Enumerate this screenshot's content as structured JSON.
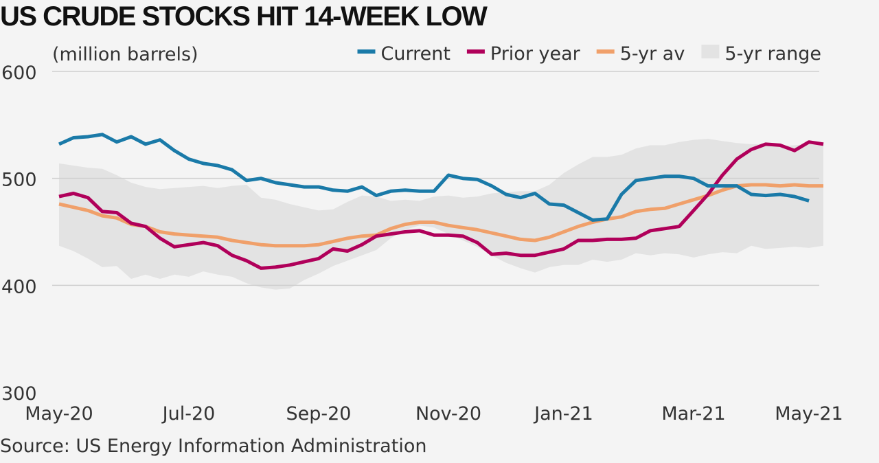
{
  "chart_data": {
    "type": "line",
    "title": "US CRUDE STOCKS HIT 14-WEEK LOW",
    "unit_label": "(million barrels)",
    "source": "Source: US Energy Information Administration",
    "ylim": [
      300,
      600
    ],
    "yticks": [
      300,
      400,
      500,
      600
    ],
    "grid": true,
    "legend_position": "top-right",
    "x_ticks": [
      {
        "week": 0,
        "label": "May-20"
      },
      {
        "week": 9,
        "label": "Jul-20"
      },
      {
        "week": 18,
        "label": "Sep-20"
      },
      {
        "week": 27,
        "label": "Nov-20"
      },
      {
        "week": 35,
        "label": "Jan-21"
      },
      {
        "week": 44,
        "label": "Mar-21"
      },
      {
        "week": 52,
        "label": "May-21"
      }
    ],
    "legend": [
      {
        "label": "Current",
        "color": "#1a7aa8",
        "kind": "line"
      },
      {
        "label": "Prior year",
        "color": "#b0005a",
        "kind": "line"
      },
      {
        "label": "5-yr av",
        "color": "#f0a06a",
        "kind": "line"
      },
      {
        "label": "5-yr range",
        "color": "#e3e3e3",
        "kind": "band"
      }
    ],
    "series": [
      {
        "name": "Current",
        "color": "#1a7aa8",
        "values": [
          532,
          538,
          539,
          541,
          534,
          539,
          532,
          536,
          526,
          518,
          514,
          512,
          508,
          498,
          500,
          496,
          494,
          492,
          492,
          489,
          488,
          492,
          484,
          488,
          489,
          488,
          488,
          503,
          500,
          499,
          493,
          485,
          482,
          486,
          476,
          475,
          468,
          461,
          462,
          485,
          498,
          500,
          502,
          502,
          500,
          493,
          493,
          493,
          485,
          484,
          485,
          483,
          479
        ]
      },
      {
        "name": "Prior year",
        "color": "#b0005a",
        "values": [
          483,
          486,
          482,
          469,
          468,
          458,
          455,
          444,
          436,
          438,
          440,
          437,
          428,
          423,
          416,
          417,
          419,
          422,
          425,
          434,
          432,
          438,
          446,
          448,
          450,
          451,
          447,
          447,
          446,
          440,
          429,
          430,
          428,
          428,
          431,
          434,
          442,
          442,
          443,
          443,
          444,
          451,
          453,
          455,
          470,
          485,
          503,
          518,
          527,
          532,
          531,
          526,
          534,
          532
        ]
      },
      {
        "name": "5-yr av",
        "color": "#f0a06a",
        "values": [
          476,
          473,
          470,
          465,
          463,
          457,
          455,
          450,
          448,
          447,
          446,
          445,
          442,
          440,
          438,
          437,
          437,
          437,
          438,
          441,
          444,
          446,
          447,
          453,
          457,
          459,
          459,
          456,
          454,
          452,
          449,
          446,
          443,
          442,
          445,
          450,
          455,
          459,
          462,
          464,
          469,
          471,
          472,
          476,
          480,
          484,
          489,
          493,
          494,
          494,
          493,
          494,
          493,
          493
        ]
      },
      {
        "name": "5-yr range",
        "color": "#e3e3e3",
        "upper": [
          514,
          512,
          510,
          509,
          503,
          496,
          492,
          490,
          491,
          492,
          493,
          491,
          493,
          494,
          482,
          480,
          476,
          473,
          470,
          471,
          478,
          484,
          483,
          479,
          480,
          479,
          483,
          484,
          482,
          483,
          486,
          487,
          488,
          488,
          494,
          505,
          513,
          520,
          520,
          522,
          528,
          531,
          531,
          534,
          536,
          537,
          535,
          533,
          532,
          532,
          530,
          531,
          532,
          531
        ],
        "lower": [
          437,
          432,
          425,
          417,
          418,
          406,
          410,
          406,
          410,
          408,
          413,
          410,
          408,
          402,
          398,
          396,
          397,
          405,
          411,
          418,
          423,
          428,
          433,
          444,
          452,
          456,
          454,
          448,
          442,
          436,
          428,
          421,
          416,
          412,
          417,
          419,
          419,
          424,
          422,
          424,
          430,
          428,
          430,
          429,
          426,
          429,
          431,
          430,
          437,
          434,
          435,
          436,
          435,
          437
        ]
      }
    ]
  }
}
